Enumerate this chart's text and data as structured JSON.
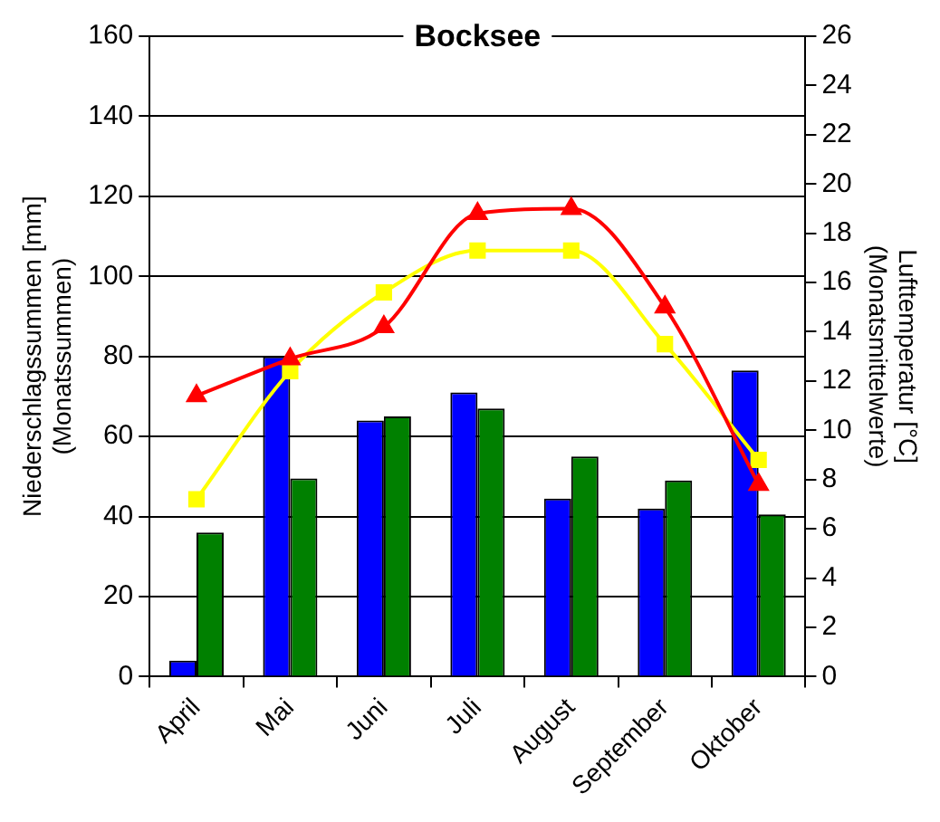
{
  "chart_data": {
    "type": "bar",
    "title": "Bocksee",
    "ylabel": "Niederschlagssummen [mm]\n(Monatssummen)",
    "y2label": "Lufttemperatur [°C]\n(Monatsmittelwerte)",
    "categories": [
      "April",
      "Mai",
      "Juni",
      "Juli",
      "August",
      "September",
      "Oktober"
    ],
    "series": [
      {
        "color": "#0000ff",
        "values": [
          4,
          80,
          64,
          71,
          44.5,
          42,
          76.5
        ]
      },
      {
        "color": "#008000",
        "values": [
          36,
          49.5,
          65,
          67,
          55,
          49,
          40.5
        ]
      },
      {
        "type": "line",
        "axis": "y2",
        "color": "#ff0000",
        "marker": "triangle",
        "values": [
          11.4,
          12.9,
          14.2,
          18.8,
          19.0,
          15.0,
          7.8
        ]
      },
      {
        "type": "line",
        "axis": "y2",
        "color": "#ffff00",
        "marker": "square",
        "values": [
          7.2,
          12.4,
          15.6,
          17.3,
          17.3,
          13.5,
          8.8
        ]
      }
    ],
    "ylim": [
      0,
      160
    ],
    "yticks": [
      0,
      20,
      40,
      60,
      80,
      100,
      120,
      140,
      160
    ],
    "y2lim": [
      0,
      26
    ],
    "y2ticks": [
      0,
      2,
      4,
      6,
      8,
      10,
      12,
      14,
      16,
      18,
      20,
      22,
      24,
      26
    ],
    "grid": "y",
    "legend": false
  }
}
